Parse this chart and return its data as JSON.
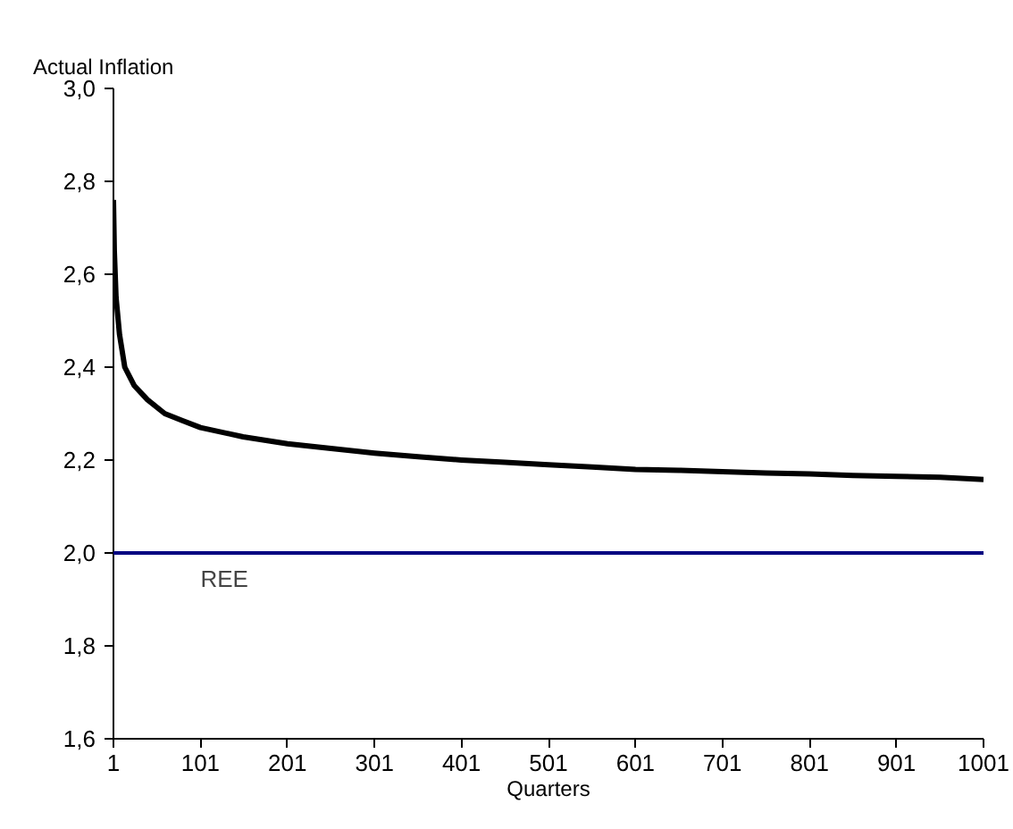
{
  "chart_data": {
    "type": "line",
    "ylabel": "Actual Inflation",
    "xlabel": "Quarters",
    "x": [
      1,
      2,
      4,
      8,
      14,
      25,
      40,
      60,
      80,
      101,
      150,
      201,
      251,
      301,
      351,
      401,
      451,
      501,
      551,
      601,
      651,
      701,
      751,
      801,
      851,
      901,
      951,
      1001
    ],
    "series": [
      {
        "color": "#000000",
        "values": [
          2.76,
          2.65,
          2.55,
          2.47,
          2.4,
          2.36,
          2.33,
          2.3,
          2.285,
          2.27,
          2.25,
          2.235,
          2.225,
          2.215,
          2.207,
          2.2,
          2.195,
          2.19,
          2.185,
          2.18,
          2.178,
          2.175,
          2.172,
          2.17,
          2.167,
          2.165,
          2.163,
          2.158
        ]
      }
    ],
    "xlim": [
      1,
      1001
    ],
    "xticks": [
      1,
      101,
      201,
      301,
      401,
      501,
      601,
      701,
      801,
      901,
      1001
    ],
    "ylim": [
      1.6,
      3.0
    ],
    "yticks": [
      {
        "value": 1.6,
        "label": "1,6"
      },
      {
        "value": 1.8,
        "label": "1,8"
      },
      {
        "value": 2.0,
        "label": "2,0"
      },
      {
        "value": 2.2,
        "label": "2,2"
      },
      {
        "value": 2.4,
        "label": "2,4"
      },
      {
        "value": 2.6,
        "label": "2,6"
      },
      {
        "value": 2.8,
        "label": "2,8"
      },
      {
        "value": 3.0,
        "label": "3,0"
      }
    ],
    "ref_lines": [
      {
        "axis": "y",
        "value": 2.0,
        "label": "REE",
        "color": "#000080"
      }
    ],
    "grid": false,
    "marker": "none",
    "line_style": "solid"
  }
}
